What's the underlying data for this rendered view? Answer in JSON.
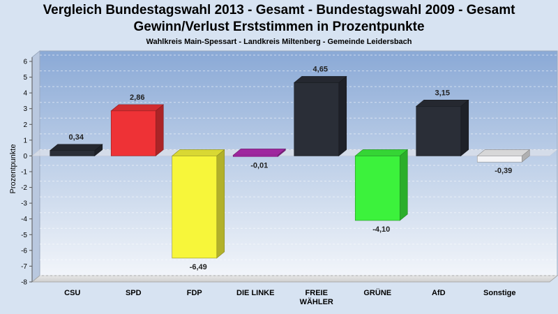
{
  "chart_data": {
    "type": "bar",
    "title": "Vergleich Bundestagswahl 2013 - Gesamt - Bundestagswahl 2009 - Gesamt",
    "subtitle": "Gewinn/Verlust Erststimmen in Prozentpunkte",
    "subtitle2": "Wahlkreis Main-Spessart - Landkreis Miltenberg - Gemeinde Leidersbach",
    "xlabel": "",
    "ylabel": "Prozentpunkte",
    "ylim": [
      -8,
      6
    ],
    "yticks": [
      6,
      5,
      4,
      3,
      2,
      1,
      0,
      -1,
      -2,
      -3,
      -4,
      -5,
      -6,
      -7,
      -8
    ],
    "grid": true,
    "categories": [
      "CSU",
      "SPD",
      "FDP",
      "DIE LINKE",
      "FREIE WÄHLER",
      "GRÜNE",
      "AfD",
      "Sonstige"
    ],
    "category_lines": [
      [
        "CSU"
      ],
      [
        "SPD"
      ],
      [
        "FDP"
      ],
      [
        "DIE LINKE"
      ],
      [
        "FREIE",
        "WÄHLER"
      ],
      [
        "GRÜNE"
      ],
      [
        "AfD"
      ],
      [
        "Sonstige"
      ]
    ],
    "values": [
      0.34,
      2.86,
      -6.49,
      -0.01,
      4.65,
      -4.1,
      3.15,
      -0.39
    ],
    "value_labels": [
      "0,34",
      "2,86",
      "-6,49",
      "-0,01",
      "4,65",
      "-4,10",
      "3,15",
      "-0,39"
    ],
    "colors": [
      "#2a2e37",
      "#ee3236",
      "#f7f63a",
      "#b52cb5",
      "#2a2e37",
      "#3cf23c",
      "#2a2e37",
      "#f4f4f6"
    ]
  }
}
